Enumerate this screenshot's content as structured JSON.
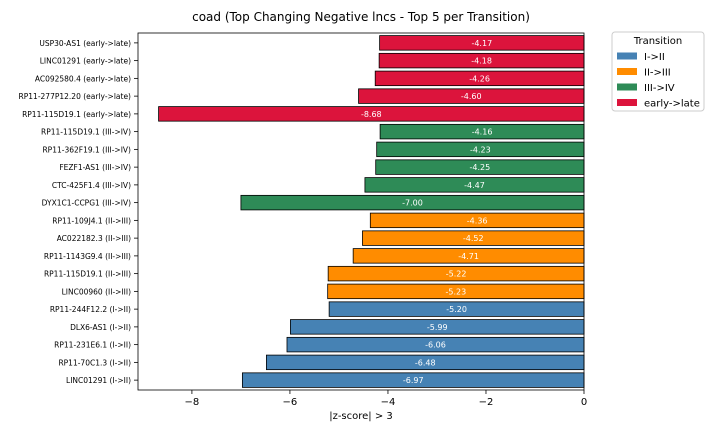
{
  "chart_data": {
    "type": "bar",
    "orientation": "horizontal",
    "title": "coad (Top Changing Negative lncs - Top 5 per Transition)",
    "xlabel": "|z-score| > 3",
    "ylabel": "",
    "xlim": [
      -9.1,
      0
    ],
    "xticks": [
      -8,
      -6,
      -4,
      -2,
      0
    ],
    "grid": false,
    "legend": {
      "title": "Transition",
      "placement": "outside-top-right",
      "entries": [
        {
          "label": "I->II",
          "color": "#4682b4"
        },
        {
          "label": "II->III",
          "color": "#ff8c00"
        },
        {
          "label": "III->IV",
          "color": "#2e8b57"
        },
        {
          "label": "early->late",
          "color": "#dc143c"
        }
      ]
    },
    "bars": [
      {
        "label": "USP30-AS1 (early->late)",
        "value": -4.17,
        "display": "-4.17",
        "group": "early->late"
      },
      {
        "label": "LINC01291 (early->late)",
        "value": -4.18,
        "display": "-4.18",
        "group": "early->late"
      },
      {
        "label": "AC092580.4 (early->late)",
        "value": -4.26,
        "display": "-4.26",
        "group": "early->late"
      },
      {
        "label": "RP11-277P12.20 (early->late)",
        "value": -4.6,
        "display": "-4.60",
        "group": "early->late"
      },
      {
        "label": "RP11-115D19.1 (early->late)",
        "value": -8.68,
        "display": "-8.68",
        "group": "early->late"
      },
      {
        "label": "RP11-115D19.1 (III->IV)",
        "value": -4.16,
        "display": "-4.16",
        "group": "III->IV"
      },
      {
        "label": "RP11-362F19.1 (III->IV)",
        "value": -4.23,
        "display": "-4.23",
        "group": "III->IV"
      },
      {
        "label": "FEZF1-AS1 (III->IV)",
        "value": -4.25,
        "display": "-4.25",
        "group": "III->IV"
      },
      {
        "label": "CTC-425F1.4 (III->IV)",
        "value": -4.47,
        "display": "-4.47",
        "group": "III->IV"
      },
      {
        "label": "DYX1C1-CCPG1 (III->IV)",
        "value": -7.0,
        "display": "-7.00",
        "group": "III->IV"
      },
      {
        "label": "RP11-109J4.1 (II->III)",
        "value": -4.36,
        "display": "-4.36",
        "group": "II->III"
      },
      {
        "label": "AC022182.3 (II->III)",
        "value": -4.52,
        "display": "-4.52",
        "group": "II->III"
      },
      {
        "label": "RP11-1143G9.4 (II->III)",
        "value": -4.71,
        "display": "-4.71",
        "group": "II->III"
      },
      {
        "label": "RP11-115D19.1 (II->III)",
        "value": -5.22,
        "display": "-5.22",
        "group": "II->III"
      },
      {
        "label": "LINC00960 (II->III)",
        "value": -5.23,
        "display": "-5.23",
        "group": "II->III"
      },
      {
        "label": "RP11-244F12.2 (I->II)",
        "value": -5.2,
        "display": "-5.20",
        "group": "I->II"
      },
      {
        "label": "DLX6-AS1 (I->II)",
        "value": -5.99,
        "display": "-5.99",
        "group": "I->II"
      },
      {
        "label": "RP11-231E6.1 (I->II)",
        "value": -6.06,
        "display": "-6.06",
        "group": "I->II"
      },
      {
        "label": "RP11-70C1.3 (I->II)",
        "value": -6.48,
        "display": "-6.48",
        "group": "I->II"
      },
      {
        "label": "LINC01291 (I->II)",
        "value": -6.97,
        "display": "-6.97",
        "group": "I->II"
      }
    ]
  }
}
